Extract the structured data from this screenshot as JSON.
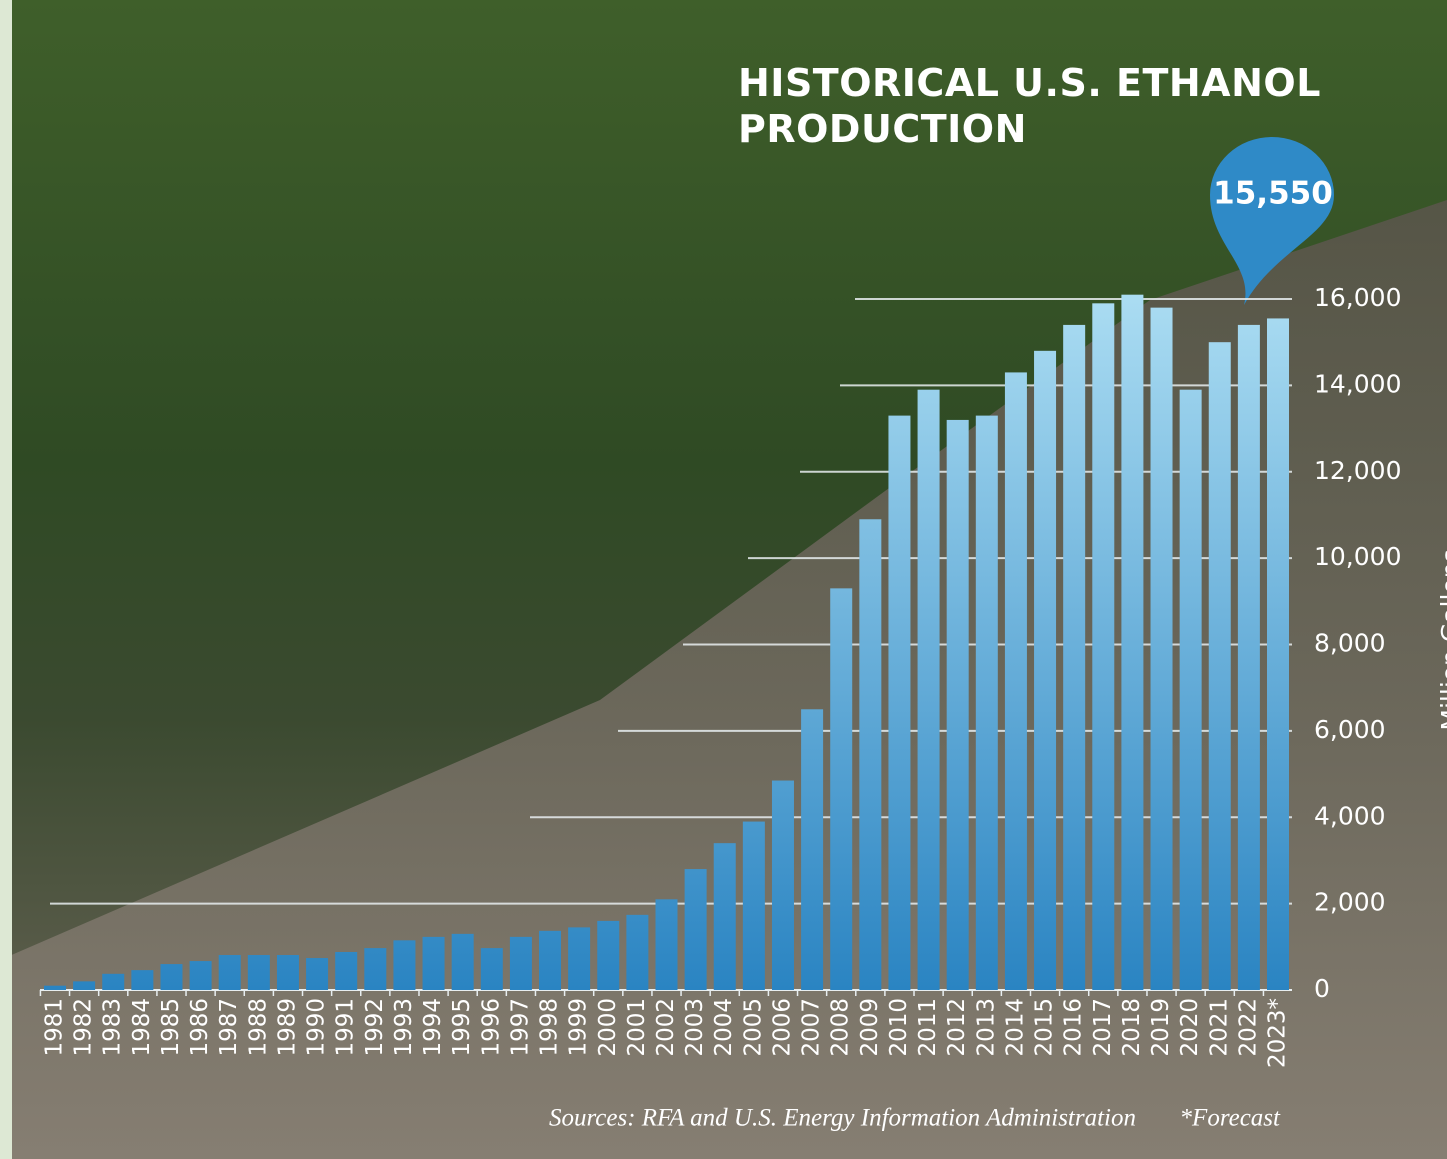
{
  "chart_data": {
    "type": "bar",
    "title": "HISTORICAL U.S. ETHANOL PRODUCTION",
    "y_axis_label": "Million Gallons",
    "source": "Sources: RFA and U.S. Energy Information Administration",
    "note": "*Forecast",
    "categories": [
      "1981",
      "1982",
      "1983",
      "1984",
      "1985",
      "1986",
      "1987",
      "1988",
      "1989",
      "1990",
      "1991",
      "1992",
      "1993",
      "1994",
      "1995",
      "1996",
      "1997",
      "1998",
      "1999",
      "2000",
      "2001",
      "2002",
      "2003",
      "2004",
      "2005",
      "2006",
      "2007",
      "2008",
      "2009",
      "2010",
      "2011",
      "2012",
      "2013",
      "2014",
      "2015",
      "2016",
      "2017",
      "2018",
      "2019",
      "2020",
      "2021",
      "2022",
      "2023*"
    ],
    "values": [
      100,
      200,
      375,
      460,
      600,
      670,
      810,
      810,
      810,
      740,
      880,
      970,
      1150,
      1230,
      1300,
      970,
      1230,
      1370,
      1450,
      1600,
      1740,
      2100,
      2800,
      3400,
      3900,
      4850,
      6500,
      9300,
      10900,
      13300,
      13900,
      13200,
      13300,
      14300,
      14800,
      15400,
      15900,
      16100,
      15800,
      13900,
      15000,
      15400,
      15550
    ],
    "value_labels": [
      null,
      null,
      null,
      null,
      null,
      null,
      null,
      null,
      null,
      null,
      null,
      null,
      null,
      null,
      null,
      null,
      null,
      null,
      null,
      null,
      null,
      null,
      null,
      null,
      null,
      null,
      null,
      null,
      null,
      null,
      null,
      null,
      null,
      null,
      null,
      null,
      null,
      null,
      null,
      null,
      null,
      null,
      "15,550"
    ],
    "color_top": "#aadcf2",
    "color_bottom": "#2a84c2",
    "ylim": [
      0,
      16000
    ],
    "yticks": [
      0,
      {
        "value": 2000,
        "label": "2,000"
      },
      {
        "value": 4000,
        "label": "4,000"
      },
      {
        "value": 6000,
        "label": "6,000"
      },
      {
        "value": 8000,
        "label": "8,000"
      },
      {
        "value": 10000,
        "label": "10,000"
      },
      {
        "value": 12000,
        "label": "12,000"
      },
      {
        "value": 14000,
        "label": "14,000"
      },
      {
        "value": 16000,
        "label": "16,000"
      }
    ],
    "grid": true
  }
}
